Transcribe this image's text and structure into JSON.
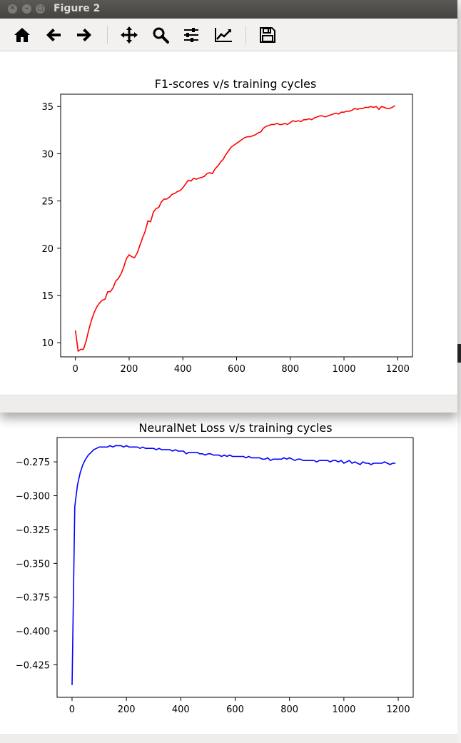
{
  "window": {
    "title": "Figure 2"
  },
  "toolbar": {
    "items": [
      {
        "name": "home",
        "icon": "home-icon"
      },
      {
        "name": "back",
        "icon": "arrow-left-icon"
      },
      {
        "name": "forward",
        "icon": "arrow-right-icon"
      },
      {
        "name": "pan",
        "icon": "move-icon"
      },
      {
        "name": "zoom",
        "icon": "magnifier-icon"
      },
      {
        "name": "subplots",
        "icon": "sliders-icon"
      },
      {
        "name": "edit-curves",
        "icon": "line-chart-icon"
      },
      {
        "name": "save",
        "icon": "floppy-disk-icon"
      }
    ]
  },
  "chart_data": [
    {
      "type": "line",
      "title": "F1-scores v/s training cycles",
      "xlim": [
        -55,
        1255
      ],
      "ylim": [
        8.5,
        36.3
      ],
      "xticks": [
        0,
        200,
        400,
        600,
        800,
        1000,
        1200
      ],
      "yticks": [
        10,
        15,
        20,
        25,
        30,
        35
      ],
      "ytick_labels": [
        "10",
        "15",
        "20",
        "25",
        "30",
        "35"
      ],
      "grid": false,
      "color": "#ff0000",
      "x": [
        0,
        10,
        20,
        30,
        40,
        50,
        60,
        70,
        80,
        90,
        100,
        110,
        120,
        130,
        140,
        150,
        160,
        170,
        180,
        190,
        200,
        210,
        220,
        230,
        240,
        250,
        260,
        270,
        280,
        290,
        300,
        310,
        320,
        330,
        340,
        350,
        360,
        370,
        380,
        390,
        400,
        410,
        420,
        430,
        440,
        450,
        460,
        470,
        480,
        490,
        500,
        510,
        520,
        530,
        540,
        550,
        560,
        570,
        580,
        590,
        600,
        610,
        620,
        630,
        640,
        650,
        660,
        670,
        680,
        690,
        700,
        710,
        720,
        730,
        740,
        750,
        760,
        770,
        780,
        790,
        800,
        810,
        820,
        830,
        840,
        850,
        860,
        870,
        880,
        890,
        900,
        910,
        920,
        930,
        940,
        950,
        960,
        970,
        980,
        990,
        1000,
        1010,
        1020,
        1030,
        1040,
        1050,
        1060,
        1070,
        1080,
        1090,
        1100,
        1110,
        1120,
        1130,
        1140,
        1150,
        1160,
        1170,
        1180,
        1190
      ],
      "y": [
        11.3,
        9.1,
        9.3,
        9.3,
        10.2,
        11.4,
        12.4,
        13.2,
        13.8,
        14.2,
        14.5,
        14.6,
        15.4,
        15.4,
        15.8,
        16.5,
        16.8,
        17.3,
        18.0,
        18.9,
        19.3,
        19.1,
        19.0,
        19.5,
        20.3,
        21.1,
        21.8,
        22.9,
        22.8,
        23.8,
        24.2,
        24.3,
        24.9,
        25.2,
        25.2,
        25.4,
        25.7,
        25.8,
        26.0,
        26.1,
        26.4,
        26.8,
        27.2,
        27.1,
        27.4,
        27.3,
        27.4,
        27.5,
        27.6,
        27.9,
        28.0,
        27.9,
        28.4,
        28.7,
        29.1,
        29.4,
        29.9,
        30.3,
        30.7,
        30.9,
        31.1,
        31.3,
        31.5,
        31.7,
        31.8,
        31.8,
        31.9,
        32.0,
        32.2,
        32.3,
        32.7,
        32.9,
        33.0,
        33.1,
        33.1,
        33.2,
        33.1,
        33.1,
        33.2,
        33.1,
        33.3,
        33.5,
        33.4,
        33.5,
        33.4,
        33.6,
        33.6,
        33.7,
        33.6,
        33.8,
        33.9,
        34.0,
        34.0,
        33.9,
        34.0,
        34.1,
        34.2,
        34.3,
        34.2,
        34.4,
        34.4,
        34.5,
        34.5,
        34.6,
        34.8,
        34.7,
        34.8,
        34.8,
        34.9,
        34.9,
        35.0,
        34.9,
        35.0,
        34.7,
        35.0,
        34.9,
        34.8,
        34.8,
        34.9,
        35.1
      ]
    },
    {
      "type": "line",
      "title": "NeuralNet Loss v/s training cycles",
      "xlim": [
        -55,
        1255
      ],
      "ylim": [
        -0.449,
        -0.257
      ],
      "xticks": [
        0,
        200,
        400,
        600,
        800,
        1000,
        1200
      ],
      "yticks": [
        -0.425,
        -0.4,
        -0.375,
        -0.35,
        -0.325,
        -0.3,
        -0.275
      ],
      "ytick_labels": [
        "−0.425",
        "−0.400",
        "−0.375",
        "−0.350",
        "−0.325",
        "−0.300",
        "−0.275"
      ],
      "grid": false,
      "color": "#0000ff",
      "x": [
        0,
        10,
        20,
        30,
        40,
        50,
        60,
        70,
        80,
        90,
        100,
        110,
        120,
        130,
        140,
        150,
        160,
        170,
        180,
        190,
        200,
        210,
        220,
        230,
        240,
        250,
        260,
        270,
        280,
        290,
        300,
        310,
        320,
        330,
        340,
        350,
        360,
        370,
        380,
        390,
        400,
        410,
        420,
        430,
        440,
        450,
        460,
        470,
        480,
        490,
        500,
        510,
        520,
        530,
        540,
        550,
        560,
        570,
        580,
        590,
        600,
        610,
        620,
        630,
        640,
        650,
        660,
        670,
        680,
        690,
        700,
        710,
        720,
        730,
        740,
        750,
        760,
        770,
        780,
        790,
        800,
        810,
        820,
        830,
        840,
        850,
        860,
        870,
        880,
        890,
        900,
        910,
        920,
        930,
        940,
        950,
        960,
        970,
        980,
        990,
        1000,
        1010,
        1020,
        1030,
        1040,
        1050,
        1060,
        1070,
        1080,
        1090,
        1100,
        1110,
        1120,
        1130,
        1140,
        1150,
        1160,
        1170,
        1180,
        1190
      ],
      "y": [
        -0.44,
        -0.308,
        -0.292,
        -0.283,
        -0.277,
        -0.273,
        -0.27,
        -0.268,
        -0.266,
        -0.265,
        -0.264,
        -0.264,
        -0.264,
        -0.264,
        -0.263,
        -0.264,
        -0.263,
        -0.263,
        -0.263,
        -0.264,
        -0.263,
        -0.264,
        -0.264,
        -0.264,
        -0.264,
        -0.265,
        -0.264,
        -0.265,
        -0.265,
        -0.265,
        -0.265,
        -0.266,
        -0.265,
        -0.266,
        -0.266,
        -0.266,
        -0.266,
        -0.267,
        -0.266,
        -0.267,
        -0.267,
        -0.267,
        -0.269,
        -0.268,
        -0.268,
        -0.268,
        -0.268,
        -0.269,
        -0.269,
        -0.27,
        -0.269,
        -0.269,
        -0.27,
        -0.27,
        -0.27,
        -0.271,
        -0.27,
        -0.271,
        -0.27,
        -0.271,
        -0.271,
        -0.271,
        -0.271,
        -0.271,
        -0.272,
        -0.271,
        -0.272,
        -0.272,
        -0.272,
        -0.272,
        -0.273,
        -0.273,
        -0.272,
        -0.274,
        -0.273,
        -0.273,
        -0.273,
        -0.273,
        -0.272,
        -0.273,
        -0.272,
        -0.273,
        -0.274,
        -0.273,
        -0.273,
        -0.274,
        -0.274,
        -0.274,
        -0.274,
        -0.274,
        -0.275,
        -0.274,
        -0.274,
        -0.274,
        -0.274,
        -0.275,
        -0.274,
        -0.274,
        -0.275,
        -0.274,
        -0.276,
        -0.275,
        -0.274,
        -0.276,
        -0.275,
        -0.276,
        -0.277,
        -0.275,
        -0.276,
        -0.276,
        -0.277,
        -0.276,
        -0.276,
        -0.276,
        -0.276,
        -0.275,
        -0.276,
        -0.277,
        -0.276,
        -0.276
      ]
    }
  ]
}
